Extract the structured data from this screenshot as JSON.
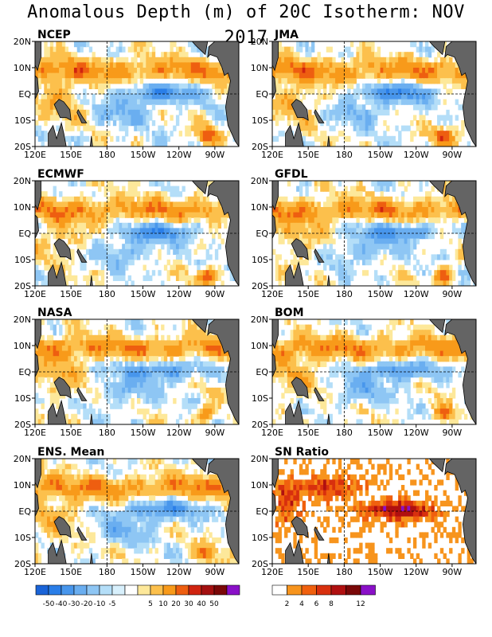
{
  "title": "Anomalous Depth (m) of 20C Isotherm: NOV 2017",
  "chart_data": {
    "type": "heatmap",
    "title": "Anomalous Depth (m) of 20C Isotherm: NOV 2017",
    "x_ticks": [
      "120E",
      "150E",
      "180",
      "150W",
      "120W",
      "90W"
    ],
    "y_ticks": [
      "20N",
      "10N",
      "EQ",
      "10S",
      "20S"
    ],
    "x_range": [
      "120E",
      "70W"
    ],
    "y_range": [
      "20S",
      "20N"
    ],
    "reference_lines": [
      "EQ",
      "180"
    ],
    "panels": [
      {
        "name": "NCEP",
        "field": "anomaly"
      },
      {
        "name": "JMA",
        "field": "anomaly"
      },
      {
        "name": "ECMWF",
        "field": "anomaly"
      },
      {
        "name": "GFDL",
        "field": "anomaly"
      },
      {
        "name": "NASA",
        "field": "anomaly"
      },
      {
        "name": "BOM",
        "field": "anomaly"
      },
      {
        "name": "ENS. Mean",
        "field": "anomaly"
      },
      {
        "name": "SN Ratio",
        "field": "snratio"
      }
    ],
    "anomaly_colorbar": {
      "labels": [
        "-50",
        "-40",
        "-30",
        "-20",
        "-10",
        "-5",
        "5",
        "10",
        "20",
        "30",
        "40",
        "50"
      ],
      "colors": [
        "#1a64d8",
        "#2a7ee8",
        "#4896ec",
        "#6aaef0",
        "#8ec6f4",
        "#b4def8",
        "#d8f0fc",
        "#ffffff",
        "#fde89a",
        "#fcc04c",
        "#f89a1a",
        "#ee5e10",
        "#d02410",
        "#a41010",
        "#7a0808",
        "#8a10c8"
      ]
    },
    "snratio_colorbar": {
      "labels": [
        "2",
        "4",
        "6",
        "8",
        "12"
      ],
      "colors": [
        "#ffffff",
        "#f7941d",
        "#f0600e",
        "#d8300e",
        "#b01010",
        "#7a0808",
        "#8a10c8"
      ]
    }
  }
}
